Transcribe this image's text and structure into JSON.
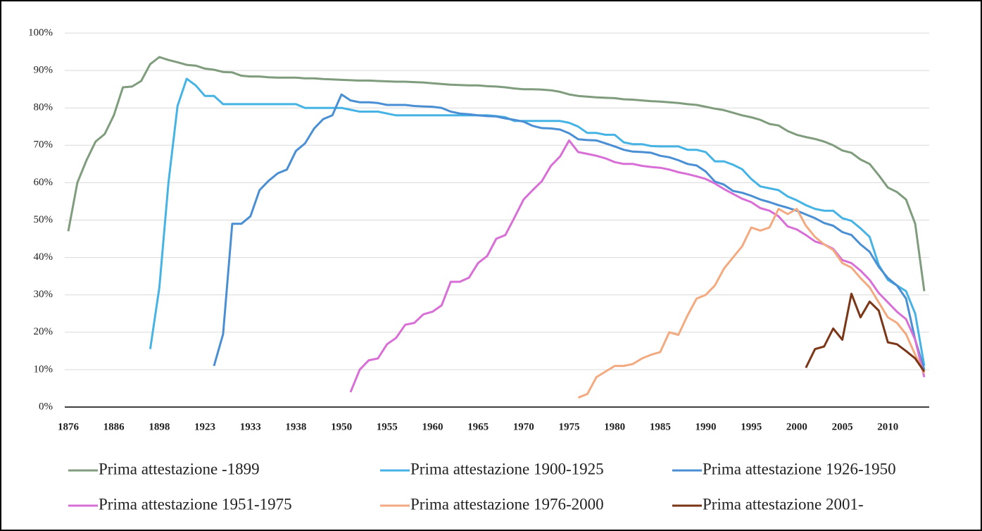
{
  "chart_data": {
    "type": "line",
    "categories": [
      "1876",
      null,
      null,
      null,
      null,
      "1886",
      null,
      null,
      null,
      null,
      "1898",
      null,
      null,
      null,
      null,
      "1923",
      null,
      null,
      null,
      null,
      "1933",
      null,
      null,
      null,
      null,
      "1938",
      null,
      null,
      null,
      null,
      "1950",
      null,
      null,
      null,
      null,
      "1955",
      null,
      null,
      null,
      null,
      "1960",
      null,
      null,
      null,
      null,
      "1965",
      null,
      null,
      null,
      null,
      "1970",
      null,
      null,
      null,
      null,
      "1975",
      null,
      null,
      null,
      null,
      "1980",
      null,
      null,
      null,
      null,
      "1985",
      null,
      null,
      null,
      null,
      "1990",
      null,
      null,
      null,
      null,
      "1995",
      null,
      null,
      null,
      null,
      "2000",
      null,
      null,
      null,
      null,
      "2005",
      null,
      null,
      null,
      null,
      "2010",
      null,
      null,
      null,
      null
    ],
    "ylim": [
      0,
      100
    ],
    "yticks": [
      {
        "value": 0,
        "label": "0%"
      },
      {
        "value": 10,
        "label": "10%"
      },
      {
        "value": 20,
        "label": "20%"
      },
      {
        "value": 30,
        "label": "30%"
      },
      {
        "value": 40,
        "label": "40%"
      },
      {
        "value": 50,
        "label": "50%"
      },
      {
        "value": 60,
        "label": "60%"
      },
      {
        "value": 70,
        "label": "70%"
      },
      {
        "value": 80,
        "label": "80%"
      },
      {
        "value": 90,
        "label": "90%"
      },
      {
        "value": 100,
        "label": "100%"
      }
    ],
    "grid": true,
    "legend": "bottom",
    "series": [
      {
        "name": "Prima attestazione -1899",
        "color": "#7f9c7d",
        "values": [
          47,
          60,
          66,
          71,
          73,
          78,
          85.5,
          85.7,
          87.2,
          91.7,
          93.6,
          92.8,
          92.2,
          91.5,
          91.3,
          90.5,
          90.2,
          89.6,
          89.5,
          88.6,
          88.4,
          88.4,
          88.2,
          88.1,
          88.1,
          88.1,
          87.9,
          87.9,
          87.7,
          87.6,
          87.5,
          87.4,
          87.3,
          87.3,
          87.2,
          87.1,
          87,
          87,
          86.9,
          86.8,
          86.6,
          86.4,
          86.2,
          86.1,
          86,
          86,
          85.8,
          85.7,
          85.5,
          85.2,
          85,
          85,
          84.9,
          84.7,
          84.3,
          83.6,
          83.2,
          83,
          82.8,
          82.7,
          82.6,
          82.3,
          82.2,
          82,
          81.8,
          81.7,
          81.5,
          81.3,
          81,
          80.8,
          80.3,
          79.8,
          79.4,
          78.7,
          78,
          77.5,
          76.8,
          75.7,
          75.3,
          73.8,
          72.8,
          72.2,
          71.7,
          71,
          70,
          68.6,
          68,
          66.2,
          65,
          62,
          58.7,
          57.5,
          55.5,
          49,
          31
        ]
      },
      {
        "name": "Prima attestazione 1900-1925",
        "color": "#45b3e4",
        "values": [
          null,
          null,
          null,
          null,
          null,
          null,
          null,
          null,
          null,
          15.5,
          32,
          60,
          80.5,
          87.8,
          86,
          83.2,
          83.2,
          81,
          81,
          81,
          81,
          81,
          81,
          81,
          81,
          81,
          80,
          80,
          80,
          80,
          80,
          79.5,
          79,
          79,
          79,
          78.5,
          78,
          78,
          78,
          78,
          78,
          78,
          78,
          78,
          78,
          78,
          78,
          77.8,
          77.5,
          76.5,
          76.5,
          76.5,
          76.5,
          76.5,
          76.5,
          76,
          75,
          73.3,
          73.3,
          72.8,
          72.8,
          70.8,
          70.3,
          70.3,
          69.8,
          69.7,
          69.7,
          69.7,
          68.8,
          68.8,
          68.2,
          65.7,
          65.7,
          64.8,
          63.6,
          61,
          59,
          58.5,
          58,
          56.3,
          55.3,
          54,
          53,
          52.5,
          52.5,
          50.5,
          49.8,
          47.8,
          45.5,
          38,
          34,
          32.5,
          31,
          25,
          11
        ]
      },
      {
        "name": "Prima attestazione 1926-1950",
        "color": "#4a8fd3",
        "values": [
          null,
          null,
          null,
          null,
          null,
          null,
          null,
          null,
          null,
          null,
          null,
          null,
          null,
          null,
          null,
          null,
          11,
          19.5,
          49,
          49,
          51,
          58,
          60.5,
          62.5,
          63.5,
          68.5,
          70.5,
          74.5,
          77,
          78,
          83.6,
          82,
          81.5,
          81.5,
          81.3,
          80.8,
          80.8,
          80.8,
          80.5,
          80.4,
          80.3,
          80,
          79,
          78.5,
          78.3,
          78,
          77.8,
          77.7,
          77.2,
          76.8,
          76.3,
          75.2,
          74.6,
          74.5,
          74.2,
          73.2,
          71.6,
          71.4,
          71.3,
          70.5,
          69.7,
          68.8,
          68.3,
          68.2,
          68,
          67.2,
          66.8,
          66,
          65,
          64.6,
          63,
          60.3,
          59.5,
          57.8,
          57.3,
          56.5,
          55.5,
          54.8,
          54,
          53.3,
          52.5,
          51.5,
          50.5,
          49.2,
          48.5,
          46.8,
          46,
          43.5,
          41.5,
          37.5,
          34.5,
          32.5,
          29,
          18,
          10
        ]
      },
      {
        "name": "Prima attestazione 1951-1975",
        "color": "#d86fd6",
        "values": [
          null,
          null,
          null,
          null,
          null,
          null,
          null,
          null,
          null,
          null,
          null,
          null,
          null,
          null,
          null,
          null,
          null,
          null,
          null,
          null,
          null,
          null,
          null,
          null,
          null,
          null,
          null,
          null,
          null,
          null,
          null,
          4,
          10,
          12.5,
          13,
          16.8,
          18.5,
          22,
          22.5,
          24.8,
          25.5,
          27.2,
          33.5,
          33.5,
          34.6,
          38.5,
          40.4,
          45,
          46,
          50.7,
          55.5,
          58,
          60.4,
          64.5,
          67,
          71.3,
          68.2,
          67.7,
          67.2,
          66.5,
          65.5,
          65,
          65,
          64.5,
          64.2,
          64,
          63.5,
          62.8,
          62.3,
          61.7,
          61,
          59.8,
          58.3,
          57,
          55.7,
          54.8,
          53.2,
          52.5,
          51,
          48.3,
          47.5,
          46,
          44.3,
          43.5,
          42.3,
          39.3,
          38.5,
          36.5,
          34,
          30.5,
          28,
          25.5,
          23.5,
          18,
          8
        ]
      },
      {
        "name": "Prima attestazione 1976-2000",
        "color": "#f3aa80",
        "values": [
          null,
          null,
          null,
          null,
          null,
          null,
          null,
          null,
          null,
          null,
          null,
          null,
          null,
          null,
          null,
          null,
          null,
          null,
          null,
          null,
          null,
          null,
          null,
          null,
          null,
          null,
          null,
          null,
          null,
          null,
          null,
          null,
          null,
          null,
          null,
          null,
          null,
          null,
          null,
          null,
          null,
          null,
          null,
          null,
          null,
          null,
          null,
          null,
          null,
          null,
          null,
          null,
          null,
          null,
          null,
          null,
          2.5,
          3.5,
          8,
          9.5,
          11,
          11,
          11.5,
          13,
          14,
          14.7,
          20,
          19.3,
          24.5,
          29,
          30,
          32.5,
          37,
          40,
          43,
          48,
          47.2,
          48,
          53,
          51.6,
          53,
          48.5,
          45.5,
          43.5,
          42,
          38.5,
          37.3,
          34.5,
          32,
          28,
          24,
          22.5,
          19.5,
          14,
          9
        ]
      },
      {
        "name": "Prima attestazione 2001-",
        "color": "#7a3616",
        "values": [
          null,
          null,
          null,
          null,
          null,
          null,
          null,
          null,
          null,
          null,
          null,
          null,
          null,
          null,
          null,
          null,
          null,
          null,
          null,
          null,
          null,
          null,
          null,
          null,
          null,
          null,
          null,
          null,
          null,
          null,
          null,
          null,
          null,
          null,
          null,
          null,
          null,
          null,
          null,
          null,
          null,
          null,
          null,
          null,
          null,
          null,
          null,
          null,
          null,
          null,
          null,
          null,
          null,
          null,
          null,
          null,
          null,
          null,
          null,
          null,
          null,
          null,
          null,
          null,
          null,
          null,
          null,
          null,
          null,
          null,
          null,
          null,
          null,
          null,
          null,
          null,
          null,
          null,
          null,
          null,
          null,
          10.5,
          15.5,
          16.2,
          21,
          18,
          30.3,
          24,
          28.2,
          25.8,
          17.3,
          16.8,
          15,
          13,
          9.5
        ]
      }
    ]
  }
}
